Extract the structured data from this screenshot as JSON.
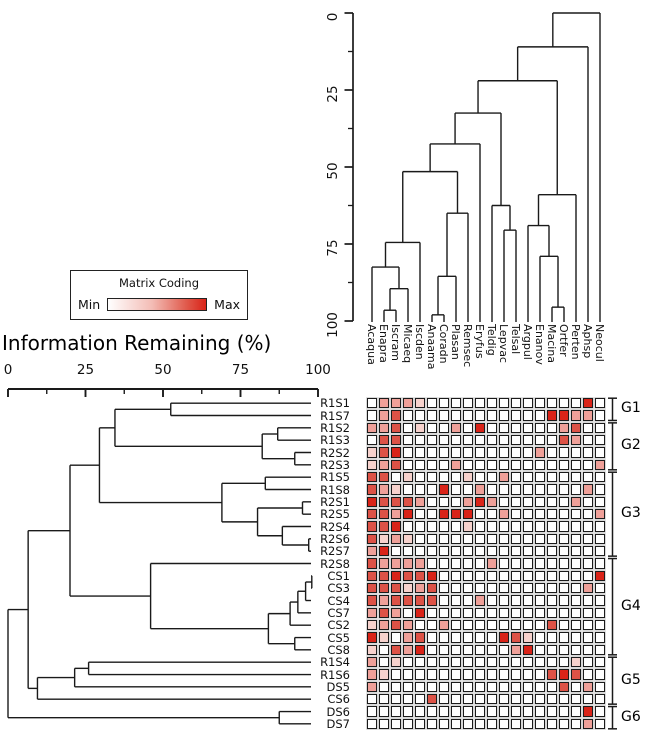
{
  "legend": {
    "title": "Matrix Coding",
    "min_label": "Min",
    "max_label": "Max"
  },
  "row_axis": {
    "title": "Information Remaining (%)",
    "ticks": [
      "0",
      "25",
      "50",
      "75",
      "100"
    ]
  },
  "col_axis": {
    "ticks": [
      "0",
      "25",
      "50",
      "75",
      "100"
    ]
  },
  "colors": {
    "heat_levels": [
      "#ffffff",
      "#f7d2cd",
      "#efa099",
      "#dd5246",
      "#d92318"
    ],
    "line": "#1a1a1a",
    "legend_gradient_start": "#ffffff",
    "legend_gradient_end": "#d92318"
  },
  "chart_data": {
    "type": "heatmap",
    "title": "",
    "columns": [
      "Acaqua",
      "Enapra",
      "Iscram",
      "Micaeq",
      "Iscden",
      "Anaama",
      "Coradn",
      "Plasan",
      "Remsec",
      "Eryfus",
      "Teldig",
      "Lepvac",
      "Telsal",
      "Argpul",
      "Enanov",
      "Macina",
      "Ortfer",
      "Perten",
      "Aphsp",
      "Neocul"
    ],
    "rows": [
      "R1S1",
      "R1S7",
      "R1S2",
      "R1S3",
      "R2S2",
      "R2S3",
      "R1S5",
      "R1S8",
      "R2S1",
      "R2S5",
      "R2S4",
      "R2S6",
      "R2S7",
      "R2S8",
      "CS1",
      "CS3",
      "CS4",
      "CS7",
      "CS2",
      "CS5",
      "CS8",
      "R1S4",
      "R1S6",
      "DS5",
      "CS6",
      "DS6",
      "DS7"
    ],
    "value_scale": "0=Min (white) to 4=Max (red), relative matrix coding intensity",
    "values": [
      [
        0,
        2,
        2,
        2,
        1,
        0,
        0,
        0,
        0,
        0,
        0,
        0,
        0,
        0,
        0,
        0,
        0,
        0,
        4,
        0
      ],
      [
        0,
        2,
        3,
        0,
        0,
        0,
        0,
        0,
        0,
        0,
        0,
        0,
        0,
        0,
        0,
        4,
        4,
        2,
        2,
        0
      ],
      [
        2,
        2,
        3,
        0,
        1,
        0,
        0,
        2,
        0,
        4,
        0,
        0,
        0,
        0,
        0,
        0,
        2,
        3,
        0,
        0
      ],
      [
        0,
        3,
        3,
        0,
        0,
        0,
        0,
        0,
        0,
        0,
        0,
        0,
        0,
        0,
        0,
        0,
        3,
        2,
        0,
        0
      ],
      [
        1,
        3,
        4,
        0,
        0,
        0,
        0,
        0,
        0,
        0,
        0,
        0,
        0,
        0,
        2,
        0,
        0,
        0,
        0,
        0
      ],
      [
        1,
        2,
        3,
        0,
        0,
        0,
        0,
        2,
        0,
        0,
        0,
        0,
        0,
        0,
        0,
        0,
        0,
        0,
        0,
        2
      ],
      [
        3,
        3,
        0,
        1,
        0,
        0,
        0,
        0,
        1,
        0,
        0,
        2,
        0,
        0,
        0,
        0,
        0,
        0,
        0,
        0
      ],
      [
        3,
        2,
        1,
        0,
        0,
        0,
        4,
        0,
        0,
        2,
        0,
        0,
        0,
        0,
        0,
        0,
        0,
        0,
        2,
        0
      ],
      [
        4,
        3,
        3,
        3,
        2,
        0,
        0,
        0,
        2,
        4,
        2,
        0,
        0,
        0,
        0,
        0,
        0,
        2,
        0,
        0
      ],
      [
        3,
        3,
        2,
        4,
        0,
        0,
        4,
        4,
        4,
        0,
        0,
        2,
        0,
        0,
        0,
        0,
        0,
        0,
        0,
        2
      ],
      [
        3,
        3,
        4,
        0,
        0,
        0,
        0,
        0,
        1,
        0,
        0,
        0,
        0,
        0,
        0,
        0,
        0,
        0,
        0,
        0
      ],
      [
        3,
        1,
        2,
        1,
        0,
        0,
        0,
        0,
        0,
        0,
        0,
        0,
        0,
        0,
        0,
        0,
        0,
        0,
        0,
        0
      ],
      [
        2,
        4,
        0,
        0,
        0,
        0,
        0,
        0,
        0,
        0,
        0,
        0,
        0,
        0,
        0,
        0,
        0,
        0,
        0,
        0
      ],
      [
        3,
        2,
        2,
        2,
        2,
        0,
        0,
        0,
        0,
        0,
        2,
        0,
        0,
        0,
        0,
        0,
        0,
        0,
        0,
        0
      ],
      [
        3,
        3,
        4,
        3,
        3,
        4,
        0,
        0,
        0,
        0,
        0,
        0,
        0,
        0,
        0,
        0,
        0,
        0,
        0,
        4
      ],
      [
        3,
        3,
        3,
        1,
        2,
        3,
        0,
        0,
        0,
        0,
        0,
        0,
        0,
        0,
        0,
        0,
        0,
        0,
        2,
        0
      ],
      [
        3,
        2,
        3,
        3,
        3,
        3,
        0,
        0,
        0,
        2,
        0,
        0,
        0,
        0,
        0,
        0,
        0,
        0,
        0,
        0
      ],
      [
        2,
        3,
        2,
        0,
        4,
        0,
        0,
        0,
        0,
        0,
        0,
        0,
        0,
        0,
        0,
        0,
        0,
        0,
        0,
        0
      ],
      [
        1,
        2,
        3,
        2,
        0,
        0,
        2,
        0,
        0,
        0,
        0,
        0,
        0,
        0,
        0,
        3,
        0,
        0,
        0,
        0
      ],
      [
        4,
        1,
        0,
        2,
        3,
        0,
        0,
        0,
        0,
        0,
        0,
        4,
        3,
        1,
        0,
        0,
        0,
        0,
        0,
        0
      ],
      [
        1,
        0,
        3,
        2,
        4,
        0,
        0,
        0,
        0,
        0,
        0,
        0,
        2,
        4,
        0,
        0,
        0,
        0,
        0,
        0
      ],
      [
        2,
        0,
        1,
        0,
        0,
        0,
        0,
        0,
        0,
        0,
        0,
        0,
        0,
        0,
        0,
        0,
        0,
        1,
        0,
        0
      ],
      [
        2,
        1,
        0,
        0,
        0,
        0,
        0,
        0,
        0,
        0,
        0,
        0,
        0,
        0,
        0,
        3,
        4,
        3,
        0,
        0
      ],
      [
        2,
        0,
        0,
        0,
        0,
        0,
        0,
        0,
        0,
        0,
        0,
        0,
        0,
        0,
        0,
        0,
        3,
        0,
        2,
        0
      ],
      [
        0,
        0,
        0,
        0,
        0,
        3,
        0,
        0,
        0,
        0,
        0,
        0,
        0,
        0,
        0,
        0,
        0,
        0,
        0,
        0
      ],
      [
        0,
        0,
        0,
        0,
        0,
        0,
        0,
        0,
        0,
        0,
        0,
        0,
        0,
        0,
        0,
        0,
        0,
        0,
        4,
        0
      ],
      [
        0,
        0,
        0,
        0,
        0,
        0,
        0,
        0,
        0,
        0,
        0,
        0,
        0,
        0,
        0,
        0,
        0,
        0,
        2,
        0
      ]
    ],
    "groups": [
      {
        "label": "G1",
        "from": "R1S1",
        "to": "R1S7"
      },
      {
        "label": "G2",
        "from": "R1S2",
        "to": "R2S3"
      },
      {
        "label": "G3",
        "from": "R1S5",
        "to": "R2S7"
      },
      {
        "label": "G4",
        "from": "R2S8",
        "to": "CS8"
      },
      {
        "label": "G5",
        "from": "R1S4",
        "to": "CS6"
      },
      {
        "label": "G6",
        "from": "DS6",
        "to": "DS7"
      }
    ],
    "col_dendrogram": {
      "axis_range": [
        0,
        100
      ],
      "merges": [
        [
          "Enapra",
          "Iscram",
          96.5
        ],
        [
          "@0",
          "Micaeq",
          89.5
        ],
        [
          "Acaqua",
          "@1",
          82.5
        ],
        [
          "@2",
          "Iscden",
          74.5
        ],
        [
          "Anaama",
          "Coradn",
          98.0
        ],
        [
          "@4",
          "Plasan",
          85.5
        ],
        [
          "@5",
          "Remsec",
          65.0
        ],
        [
          "@3",
          "@6",
          51.5
        ],
        [
          "@7",
          "Eryfus",
          42.5
        ],
        [
          "Lepvac",
          "Telsal",
          70.5
        ],
        [
          "Teldig",
          "@9",
          62.5
        ],
        [
          "@8",
          "@10",
          32.5
        ],
        [
          "Macina",
          "Ortfer",
          95.5
        ],
        [
          "Enanov",
          "@12",
          79.0
        ],
        [
          "Argpul",
          "@13",
          69.0
        ],
        [
          "@14",
          "Perten",
          59.0
        ],
        [
          "@11",
          "@15",
          22.0
        ],
        [
          "@16",
          "Aphsp",
          11.0
        ],
        [
          "@17",
          "Neocul",
          0.0
        ]
      ]
    },
    "row_dendrogram": {
      "axis_range": [
        0,
        100
      ],
      "merges": [
        [
          "R1S1",
          "R1S7",
          52.5
        ],
        [
          "R1S2",
          "R1S3",
          87.0
        ],
        [
          "R2S2",
          "R2S3",
          92.5
        ],
        [
          "@1",
          "@2",
          82.0
        ],
        [
          "@0",
          "@3",
          34.5
        ],
        [
          "R1S5",
          "R1S8",
          83.0
        ],
        [
          "R2S1",
          "R2S5",
          95.0
        ],
        [
          "R2S6",
          "R2S7",
          97.0
        ],
        [
          "R2S4",
          "@7",
          88.5
        ],
        [
          "@6",
          "@8",
          80.5
        ],
        [
          "@5",
          "@9",
          69.0
        ],
        [
          "@4",
          "@10",
          29.5
        ],
        [
          "CS1",
          "CS3",
          98.0
        ],
        [
          "@12",
          "CS4",
          96.0
        ],
        [
          "@13",
          "CS7",
          93.5
        ],
        [
          "@14",
          "CS2",
          91.0
        ],
        [
          "CS5",
          "CS8",
          92.5
        ],
        [
          "@15",
          "@16",
          84.0
        ],
        [
          "R2S8",
          "@17",
          46.0
        ],
        [
          "@11",
          "@18",
          20.0
        ],
        [
          "R1S4",
          "R1S6",
          26.0
        ],
        [
          "@20",
          "DS5",
          21.5
        ],
        [
          "@21",
          "CS6",
          9.5
        ],
        [
          "@19",
          "@22",
          6.5
        ],
        [
          "DS6",
          "DS7",
          87.5
        ],
        [
          "@23",
          "@24",
          0.0
        ]
      ]
    }
  }
}
